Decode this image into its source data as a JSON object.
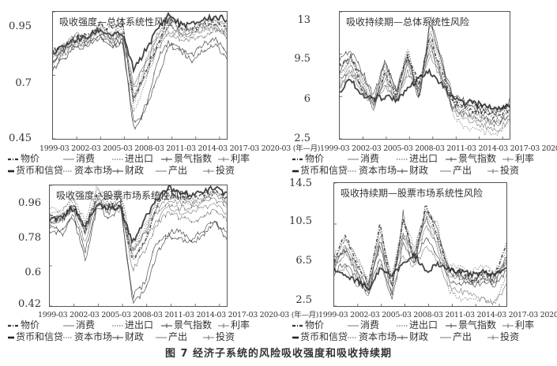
{
  "caption": "图 7   经济子系统的风险吸收强度和吸收持续期",
  "x_ticks": [
    "1999-03",
    "2002-03",
    "2005-03",
    "2008-03",
    "2011-03",
    "2014-03",
    "2017-03",
    "2020-03"
  ],
  "x_unit": "(年—月)",
  "legend": [
    {
      "label": "物价",
      "style": "dashdot"
    },
    {
      "label": "消费",
      "style": "thin"
    },
    {
      "label": "进出口",
      "style": "dotted"
    },
    {
      "label": "景气指数",
      "style": "marker"
    },
    {
      "label": "利率",
      "style": "marker-thin"
    },
    {
      "label": "货币和信贷",
      "style": "thick"
    },
    {
      "label": "资本市场",
      "style": "dotted"
    },
    {
      "label": "财政",
      "style": "marker"
    },
    {
      "label": "产出",
      "style": "thin"
    },
    {
      "label": "投资",
      "style": "marker-thin"
    }
  ],
  "panels": [
    {
      "title": "吸收强度—总体系统性风险",
      "yticks": [
        "0.95",
        "0.7",
        "0.45"
      ]
    },
    {
      "title": "吸收持续期—总体系统性风险",
      "yticks": [
        "13",
        "9.5",
        "6",
        "2.5"
      ]
    },
    {
      "title": "吸收强度—股票市场系统性风险",
      "yticks": [
        "0.96",
        "0.78",
        "0.6",
        "0.42"
      ]
    },
    {
      "title": "吸收持续期—股票市场系统性风险",
      "yticks": [
        "14.5",
        "10.5",
        "6.5",
        "2.5"
      ]
    }
  ],
  "chart_data": [
    {
      "type": "line",
      "title": "吸收强度—总体系统性风险",
      "xlabel": "(年—月)",
      "ylabel": "",
      "ylim": [
        0.45,
        0.95
      ],
      "yticks": [
        0.45,
        0.7,
        0.95
      ],
      "x": [
        "1999-03",
        "2000-09",
        "2002-03",
        "2003-09",
        "2005-03",
        "2006-09",
        "2008-03",
        "2009-09",
        "2011-03",
        "2012-09",
        "2014-03",
        "2015-09",
        "2017-03",
        "2018-09",
        "2020-03",
        "2021-06"
      ],
      "series": [
        {
          "name": "物价",
          "values": [
            0.8,
            0.81,
            0.85,
            0.86,
            0.9,
            0.88,
            0.9,
            0.6,
            0.72,
            0.82,
            0.93,
            0.89,
            0.88,
            0.9,
            0.91,
            0.88
          ]
        },
        {
          "name": "消费",
          "values": [
            0.78,
            0.82,
            0.86,
            0.84,
            0.88,
            0.84,
            0.84,
            0.64,
            0.76,
            0.86,
            0.92,
            0.88,
            0.88,
            0.91,
            0.92,
            0.9
          ]
        },
        {
          "name": "进出口",
          "values": [
            0.74,
            0.8,
            0.84,
            0.85,
            0.9,
            0.86,
            0.88,
            0.58,
            0.74,
            0.84,
            0.93,
            0.9,
            0.88,
            0.9,
            0.92,
            0.88
          ]
        },
        {
          "name": "景气指数",
          "values": [
            0.76,
            0.8,
            0.83,
            0.82,
            0.86,
            0.82,
            0.84,
            0.5,
            0.56,
            0.76,
            0.83,
            0.8,
            0.78,
            0.82,
            0.84,
            0.79
          ]
        },
        {
          "name": "利率",
          "values": [
            0.75,
            0.79,
            0.82,
            0.83,
            0.87,
            0.83,
            0.85,
            0.62,
            0.7,
            0.8,
            0.86,
            0.84,
            0.84,
            0.86,
            0.88,
            0.84
          ]
        },
        {
          "name": "货币和信贷",
          "values": [
            0.78,
            0.82,
            0.84,
            0.85,
            0.88,
            0.86,
            0.86,
            0.72,
            0.8,
            0.88,
            0.94,
            0.9,
            0.9,
            0.92,
            0.93,
            0.92
          ]
        },
        {
          "name": "资本市场",
          "values": [
            0.73,
            0.78,
            0.83,
            0.84,
            0.9,
            0.85,
            0.92,
            0.55,
            0.68,
            0.8,
            0.9,
            0.86,
            0.86,
            0.88,
            0.9,
            0.85
          ]
        },
        {
          "name": "财政",
          "values": [
            0.72,
            0.77,
            0.81,
            0.81,
            0.85,
            0.81,
            0.83,
            0.48,
            0.58,
            0.68,
            0.82,
            0.8,
            0.76,
            0.8,
            0.82,
            0.77
          ]
        },
        {
          "name": "产出",
          "values": [
            0.77,
            0.81,
            0.85,
            0.84,
            0.88,
            0.84,
            0.86,
            0.66,
            0.74,
            0.84,
            0.88,
            0.86,
            0.86,
            0.88,
            0.89,
            0.86
          ]
        },
        {
          "name": "投资",
          "values": [
            0.76,
            0.8,
            0.84,
            0.84,
            0.89,
            0.85,
            0.87,
            0.6,
            0.72,
            0.82,
            0.9,
            0.87,
            0.87,
            0.89,
            0.9,
            0.87
          ]
        }
      ]
    },
    {
      "type": "line",
      "title": "吸收持续期—总体系统性风险",
      "xlabel": "(年—月)",
      "ylabel": "",
      "ylim": [
        2.5,
        13
      ],
      "yticks": [
        2.5,
        6,
        9.5,
        13
      ],
      "x": [
        "1999-03",
        "2000-09",
        "2002-03",
        "2003-09",
        "2005-03",
        "2006-09",
        "2008-03",
        "2009-09",
        "2011-03",
        "2012-09",
        "2014-03",
        "2015-09",
        "2017-03",
        "2018-09",
        "2020-03",
        "2021-06"
      ],
      "series": [
        {
          "name": "物价",
          "values": [
            8.5,
            9.5,
            6.5,
            5.5,
            8.0,
            6.0,
            9.5,
            7.0,
            11.0,
            8.0,
            5.5,
            5.0,
            4.8,
            4.5,
            4.2,
            5.0
          ]
        },
        {
          "name": "消费",
          "values": [
            7.5,
            8.5,
            7.0,
            5.0,
            7.0,
            5.5,
            8.0,
            6.5,
            10.0,
            7.5,
            5.0,
            4.5,
            4.2,
            4.0,
            3.8,
            4.6
          ]
        },
        {
          "name": "进出口",
          "values": [
            8.0,
            9.0,
            7.5,
            5.2,
            8.5,
            6.2,
            10.0,
            6.0,
            11.5,
            8.5,
            5.8,
            5.4,
            5.0,
            4.8,
            4.4,
            5.2
          ]
        },
        {
          "name": "景气指数",
          "values": [
            9.0,
            9.8,
            8.0,
            6.0,
            9.0,
            6.5,
            9.5,
            5.5,
            12.5,
            9.0,
            6.0,
            5.6,
            5.4,
            5.0,
            4.8,
            5.6
          ]
        },
        {
          "name": "利率",
          "values": [
            7.0,
            8.0,
            6.8,
            5.4,
            7.8,
            5.8,
            8.5,
            6.8,
            10.5,
            7.8,
            5.2,
            4.8,
            4.5,
            4.2,
            4.0,
            4.8
          ]
        },
        {
          "name": "货币和信贷",
          "values": [
            6.5,
            7.5,
            6.0,
            5.8,
            6.0,
            5.8,
            6.5,
            7.5,
            8.0,
            7.0,
            5.8,
            5.5,
            5.4,
            5.2,
            5.0,
            5.4
          ]
        },
        {
          "name": "资本市场",
          "values": [
            7.8,
            8.8,
            7.2,
            5.0,
            8.2,
            6.0,
            9.8,
            6.2,
            11.2,
            9.5,
            4.5,
            3.5,
            3.2,
            3.0,
            3.0,
            4.0
          ]
        },
        {
          "name": "财政",
          "values": [
            8.2,
            9.2,
            7.8,
            5.6,
            8.8,
            6.4,
            9.2,
            6.0,
            12.0,
            8.8,
            5.6,
            5.2,
            5.0,
            4.8,
            4.5,
            5.4
          ]
        },
        {
          "name": "产出",
          "values": [
            6.8,
            7.8,
            6.4,
            5.2,
            7.2,
            5.6,
            7.8,
            6.8,
            9.5,
            7.2,
            4.8,
            4.2,
            3.8,
            3.5,
            3.2,
            4.2
          ]
        },
        {
          "name": "投资",
          "values": [
            7.2,
            8.2,
            6.6,
            5.4,
            7.5,
            5.8,
            8.8,
            6.5,
            10.2,
            7.6,
            5.0,
            4.6,
            4.2,
            4.0,
            3.6,
            4.6
          ]
        }
      ]
    },
    {
      "type": "line",
      "title": "吸收强度—股票市场系统性风险",
      "xlabel": "(年—月)",
      "ylabel": "",
      "ylim": [
        0.42,
        0.96
      ],
      "yticks": [
        0.42,
        0.6,
        0.78,
        0.96
      ],
      "x": [
        "1999-03",
        "2000-09",
        "2002-03",
        "2003-09",
        "2005-03",
        "2006-09",
        "2008-03",
        "2009-09",
        "2011-03",
        "2012-09",
        "2014-03",
        "2015-09",
        "2017-03",
        "2018-09",
        "2020-03",
        "2021-06"
      ],
      "series": [
        {
          "name": "物价",
          "values": [
            0.82,
            0.8,
            0.88,
            0.74,
            0.93,
            0.88,
            0.9,
            0.62,
            0.7,
            0.86,
            0.94,
            0.91,
            0.9,
            0.92,
            0.94,
            0.9
          ]
        },
        {
          "name": "消费",
          "values": [
            0.8,
            0.82,
            0.86,
            0.76,
            0.9,
            0.86,
            0.86,
            0.66,
            0.74,
            0.86,
            0.9,
            0.88,
            0.88,
            0.9,
            0.92,
            0.88
          ]
        },
        {
          "name": "进出口",
          "values": [
            0.84,
            0.84,
            0.9,
            0.78,
            0.94,
            0.9,
            0.92,
            0.7,
            0.78,
            0.88,
            0.92,
            0.9,
            0.88,
            0.9,
            0.92,
            0.89
          ]
        },
        {
          "name": "景气指数",
          "values": [
            0.78,
            0.76,
            0.84,
            0.66,
            0.88,
            0.84,
            0.88,
            0.46,
            0.52,
            0.7,
            0.74,
            0.76,
            0.72,
            0.76,
            0.8,
            0.74
          ]
        },
        {
          "name": "利率",
          "values": [
            0.8,
            0.8,
            0.86,
            0.7,
            0.9,
            0.86,
            0.88,
            0.58,
            0.66,
            0.78,
            0.84,
            0.82,
            0.8,
            0.82,
            0.86,
            0.8
          ]
        },
        {
          "name": "货币和信贷",
          "values": [
            0.8,
            0.82,
            0.86,
            0.78,
            0.88,
            0.86,
            0.86,
            0.7,
            0.8,
            0.9,
            0.95,
            0.92,
            0.92,
            0.93,
            0.95,
            0.92
          ]
        },
        {
          "name": "资本市场",
          "values": [
            0.86,
            0.84,
            0.9,
            0.8,
            0.95,
            0.9,
            0.94,
            0.68,
            0.76,
            0.88,
            0.92,
            0.9,
            0.88,
            0.9,
            0.93,
            0.88
          ]
        },
        {
          "name": "财政",
          "values": [
            0.76,
            0.74,
            0.82,
            0.62,
            0.86,
            0.82,
            0.86,
            0.44,
            0.48,
            0.64,
            0.74,
            0.72,
            0.7,
            0.74,
            0.79,
            0.72
          ]
        },
        {
          "name": "产出",
          "values": [
            0.79,
            0.81,
            0.85,
            0.74,
            0.89,
            0.85,
            0.85,
            0.64,
            0.7,
            0.8,
            0.86,
            0.84,
            0.84,
            0.86,
            0.88,
            0.83
          ]
        },
        {
          "name": "投资",
          "values": [
            0.81,
            0.82,
            0.87,
            0.76,
            0.91,
            0.87,
            0.88,
            0.66,
            0.74,
            0.84,
            0.88,
            0.86,
            0.86,
            0.88,
            0.9,
            0.86
          ]
        }
      ]
    },
    {
      "type": "line",
      "title": "吸收持续期—股票市场系统性风险",
      "xlabel": "(年—月)",
      "ylabel": "",
      "ylim": [
        2.5,
        14.5
      ],
      "yticks": [
        2.5,
        6.5,
        10.5,
        14.5
      ],
      "x": [
        "1999-03",
        "2000-09",
        "2002-03",
        "2003-09",
        "2005-03",
        "2006-09",
        "2008-03",
        "2009-09",
        "2011-03",
        "2012-09",
        "2014-03",
        "2015-09",
        "2017-03",
        "2018-09",
        "2020-03",
        "2021-06"
      ],
      "series": [
        {
          "name": "物价",
          "values": [
            7.0,
            9.5,
            6.5,
            4.5,
            10.8,
            4.0,
            11.0,
            7.0,
            12.5,
            9.0,
            6.0,
            6.0,
            5.0,
            5.8,
            5.5,
            8.5
          ]
        },
        {
          "name": "消费",
          "values": [
            6.5,
            8.5,
            6.0,
            4.2,
            9.5,
            4.5,
            9.5,
            7.5,
            11.0,
            8.0,
            5.8,
            5.5,
            5.0,
            5.2,
            5.0,
            7.0
          ]
        },
        {
          "name": "进出口",
          "values": [
            7.2,
            9.0,
            7.0,
            4.8,
            10.0,
            5.0,
            10.5,
            8.0,
            11.5,
            9.5,
            6.5,
            6.2,
            5.8,
            6.5,
            6.0,
            8.0
          ]
        },
        {
          "name": "景气指数",
          "values": [
            6.8,
            8.0,
            5.5,
            4.0,
            8.5,
            3.5,
            11.5,
            6.5,
            12.0,
            10.0,
            6.0,
            5.5,
            5.0,
            5.5,
            5.2,
            7.5
          ]
        },
        {
          "name": "利率",
          "values": [
            6.2,
            7.8,
            5.8,
            4.4,
            8.8,
            4.8,
            9.0,
            7.0,
            10.5,
            8.5,
            5.5,
            5.2,
            4.8,
            5.0,
            4.8,
            6.8
          ]
        },
        {
          "name": "货币和信贷",
          "values": [
            6.0,
            5.5,
            5.0,
            4.2,
            6.0,
            5.5,
            6.5,
            7.5,
            6.0,
            6.5,
            6.0,
            5.8,
            5.6,
            5.8,
            5.6,
            6.5
          ]
        },
        {
          "name": "资本市场",
          "values": [
            7.5,
            9.2,
            7.2,
            5.0,
            10.2,
            5.2,
            10.8,
            8.2,
            11.8,
            10.5,
            4.0,
            3.2,
            3.0,
            3.2,
            2.8,
            5.5
          ]
        },
        {
          "name": "财政",
          "values": [
            5.8,
            6.8,
            5.0,
            4.0,
            7.5,
            3.0,
            8.5,
            6.5,
            9.5,
            7.5,
            5.0,
            4.8,
            4.5,
            4.8,
            4.6,
            6.0
          ]
        },
        {
          "name": "产出",
          "values": [
            5.5,
            6.2,
            4.5,
            3.6,
            6.5,
            4.0,
            7.5,
            6.2,
            8.5,
            7.0,
            4.5,
            4.0,
            3.5,
            3.0,
            2.8,
            4.5
          ]
        },
        {
          "name": "投资",
          "values": [
            6.4,
            8.2,
            6.2,
            4.6,
            9.0,
            4.6,
            9.8,
            7.2,
            11.2,
            9.0,
            5.6,
            5.4,
            5.0,
            5.2,
            5.0,
            7.2
          ]
        }
      ]
    }
  ]
}
